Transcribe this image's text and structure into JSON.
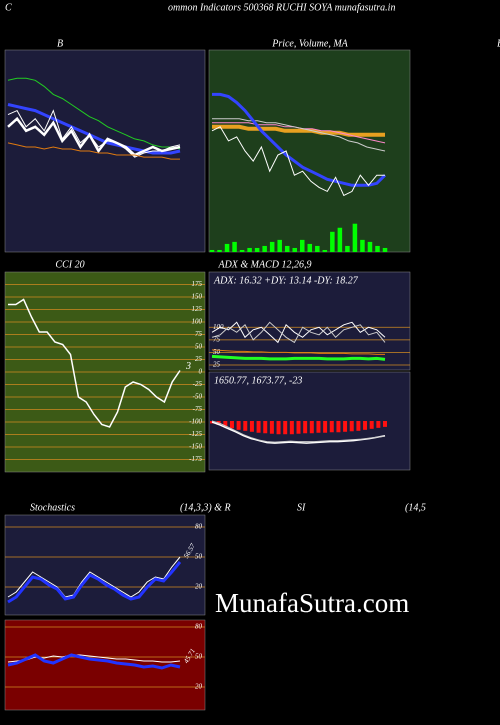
{
  "header": {
    "left": "C",
    "title": "ommon  Indicators 500368  RUCHI SOYA munafasutra.in",
    "right": "B"
  },
  "watermark": "MunafaSutra.com",
  "stoch_heading": [
    "Stochastics",
    "(14,3,3) & R",
    "SI",
    "(14,5"
  ],
  "chart_data": [
    {
      "type": "line",
      "title": "B",
      "background": "#1c1c3a",
      "ylim": [
        0,
        100
      ],
      "series": [
        {
          "color": "#22cc22",
          "width": 1,
          "values": [
            85,
            86,
            86,
            85,
            82,
            78,
            76,
            73,
            70,
            67,
            65,
            62,
            60,
            58,
            56,
            55,
            53,
            52,
            52,
            51
          ]
        },
        {
          "color": "#3344ff",
          "width": 3,
          "values": [
            73,
            72,
            71,
            70,
            68,
            66,
            64,
            62,
            60,
            58,
            56,
            54,
            53,
            52,
            51,
            50,
            49,
            49,
            49,
            50
          ]
        },
        {
          "color": "#ffffff",
          "width": 1,
          "values": [
            68,
            70,
            62,
            66,
            60,
            70,
            56,
            62,
            54,
            58,
            52,
            55,
            54,
            51,
            47,
            49,
            50,
            50,
            52,
            53
          ]
        },
        {
          "color": "#ffffff",
          "width": 2.5,
          "values": [
            62,
            66,
            60,
            62,
            58,
            64,
            55,
            60,
            52,
            58,
            50,
            56,
            54,
            52,
            48,
            50,
            52,
            50,
            51,
            52
          ]
        },
        {
          "color": "#e07a10",
          "width": 1,
          "values": [
            54,
            53,
            52,
            52,
            51,
            52,
            51,
            51,
            50,
            50,
            49,
            49,
            48,
            48,
            48,
            47,
            47,
            47,
            46,
            46
          ]
        }
      ]
    },
    {
      "type": "line",
      "title": "Price,  Volume,  MA",
      "background": "#1e3f1c",
      "ylim": [
        0,
        100
      ],
      "series": [
        {
          "color": "#00ff00",
          "style": "bar",
          "values": [
            1,
            1,
            4,
            5,
            1,
            2,
            2,
            3,
            5,
            6,
            3,
            2,
            6,
            4,
            3,
            1,
            10,
            12,
            3,
            14,
            6,
            5,
            3,
            2
          ]
        },
        {
          "color": "#e8a020",
          "width": 4,
          "values": [
            62,
            62,
            62,
            62,
            61,
            61,
            61,
            61,
            60,
            60,
            60,
            60,
            59,
            59,
            59,
            58,
            58,
            58,
            58,
            58
          ]
        },
        {
          "color": "#ff88cc",
          "width": 1,
          "values": [
            64,
            64,
            64,
            64,
            64,
            63,
            63,
            63,
            62,
            62,
            61,
            61,
            60,
            60,
            59,
            58,
            57,
            56,
            55,
            54
          ]
        },
        {
          "color": "#cccccc",
          "width": 1,
          "values": [
            66,
            66,
            66,
            66,
            65,
            65,
            64,
            64,
            63,
            62,
            61,
            60,
            59,
            58,
            57,
            55,
            54,
            52,
            51,
            50
          ]
        },
        {
          "color": "#3344ff",
          "width": 3,
          "values": [
            78,
            78,
            77,
            74,
            70,
            65,
            60,
            56,
            52,
            48,
            45,
            42,
            40,
            38,
            36,
            35,
            34,
            33,
            33,
            33,
            34,
            38
          ]
        },
        {
          "color": "#ffffff",
          "width": 1,
          "values": [
            60,
            62,
            55,
            57,
            50,
            45,
            52,
            40,
            48,
            50,
            38,
            40,
            35,
            32,
            30,
            37,
            28,
            30,
            38,
            33,
            38,
            38
          ]
        }
      ]
    },
    {
      "type": "line",
      "title": "CCI 20",
      "background": "#3c5a16",
      "ylim": [
        -200,
        200
      ],
      "grid": true,
      "grid_color": "#d08a20",
      "tick_side": "right",
      "yticks": [
        175,
        150,
        125,
        100,
        75,
        50,
        25,
        0,
        -25,
        -50,
        -75,
        -100,
        -125,
        -150,
        -175
      ],
      "annotation": "3",
      "series": [
        {
          "color": "#ffffff",
          "width": 1.5,
          "values": [
            135,
            135,
            145,
            110,
            80,
            80,
            60,
            55,
            35,
            -50,
            -60,
            -85,
            -105,
            -110,
            -80,
            -30,
            -20,
            -25,
            -35,
            -50,
            -60,
            -20,
            3
          ]
        }
      ]
    },
    {
      "type": "line",
      "title": "ADX  & MACD 12,26,9",
      "subtitle": "ADX: 16.32  +DY: 13.14  -DY: 18.27",
      "background": "#1c1c3a",
      "ylim": [
        15,
        210
      ],
      "grid": true,
      "grid_color": "#d08a20",
      "tick_side": "left",
      "yticks": [
        100,
        75,
        50,
        25
      ],
      "series": [
        {
          "color": "#ffffff",
          "width": 1,
          "values": [
            90,
            100,
            95,
            110,
            80,
            95,
            100,
            85,
            70,
            105,
            90,
            80,
            95,
            100,
            85,
            95,
            105,
            110,
            90,
            100,
            95,
            80
          ]
        },
        {
          "color": "#cccccc",
          "width": 1,
          "values": [
            80,
            85,
            100,
            90,
            105,
            75,
            90,
            110,
            95,
            80,
            70,
            100,
            90,
            85,
            100,
            80,
            95,
            100,
            105,
            85,
            90,
            70
          ]
        },
        {
          "color": "#e07a10",
          "width": 1,
          "values": [
            55,
            54,
            53,
            52,
            52,
            51,
            51,
            50,
            50,
            50,
            49,
            49,
            49,
            48,
            48,
            48,
            48,
            47,
            47,
            47,
            46,
            46
          ]
        },
        {
          "color": "#22ff22",
          "width": 3,
          "values": [
            42,
            41,
            40,
            39,
            38,
            38,
            38,
            37,
            37,
            37,
            38,
            38,
            38,
            38,
            37,
            37,
            37,
            38,
            38,
            37,
            38,
            36
          ]
        }
      ]
    },
    {
      "type": "line",
      "subtitle": "1650.77,  1673.77,  -23",
      "background": "#1c1c3a",
      "ylim": [
        -100,
        100
      ],
      "series": [
        {
          "color": "#ff1010",
          "style": "bar",
          "values": [
            -5,
            -8,
            -12,
            -15,
            -18,
            -20,
            -22,
            -24,
            -25,
            -26,
            -27,
            -27,
            -27,
            -26,
            -25,
            -25,
            -24,
            -24,
            -23,
            -23,
            -22,
            -21,
            -20,
            -18,
            -16,
            -14,
            -12
          ]
        },
        {
          "color": "#ffffff",
          "width": 1.5,
          "values": [
            -2,
            -8,
            -15,
            -22,
            -30,
            -36,
            -40,
            -44,
            -45,
            -44,
            -43,
            -44,
            -45,
            -44,
            -43,
            -42,
            -42,
            -41,
            -40,
            -38,
            -36,
            -33,
            -30
          ]
        },
        {
          "color": "#cccccc",
          "width": 1,
          "values": [
            0,
            -5,
            -12,
            -20,
            -28,
            -34,
            -39,
            -42,
            -43,
            -42,
            -41,
            -42,
            -42,
            -42,
            -41,
            -40,
            -40,
            -39,
            -38,
            -37,
            -35,
            -33,
            -31
          ]
        }
      ]
    },
    {
      "type": "line",
      "background": "#1c1c3a",
      "ylim": [
        -8,
        92
      ],
      "grid": true,
      "grid_color": "#d08a20",
      "tick_side": "right",
      "yticks": [
        80,
        50,
        20
      ],
      "annotation": "56.57",
      "series": [
        {
          "color": "#ffffff",
          "width": 1,
          "values": [
            10,
            15,
            25,
            35,
            30,
            25,
            20,
            10,
            12,
            25,
            35,
            30,
            25,
            20,
            15,
            10,
            15,
            25,
            30,
            28,
            40,
            50
          ]
        },
        {
          "color": "#2233ff",
          "width": 3,
          "values": [
            5,
            10,
            20,
            30,
            28,
            22,
            18,
            8,
            10,
            22,
            32,
            28,
            22,
            18,
            12,
            8,
            10,
            20,
            28,
            26,
            35,
            45
          ]
        }
      ]
    },
    {
      "type": "line",
      "background": "#7a0000",
      "ylim": [
        -3,
        87
      ],
      "grid": true,
      "grid_color": "#d08a20",
      "tick_side": "right",
      "yticks": [
        80,
        50,
        20
      ],
      "annotation": "45.71",
      "series": [
        {
          "color": "#ffffff",
          "width": 1,
          "values": [
            45,
            46,
            47,
            50,
            49,
            51,
            50,
            52,
            52,
            51,
            50,
            49,
            48,
            48,
            47,
            46,
            46,
            45,
            45,
            46
          ]
        },
        {
          "color": "#2233ff",
          "width": 3,
          "values": [
            42,
            44,
            48,
            52,
            46,
            44,
            48,
            52,
            50,
            48,
            47,
            46,
            44,
            43,
            42,
            40,
            41,
            39,
            42,
            40
          ]
        }
      ]
    }
  ]
}
